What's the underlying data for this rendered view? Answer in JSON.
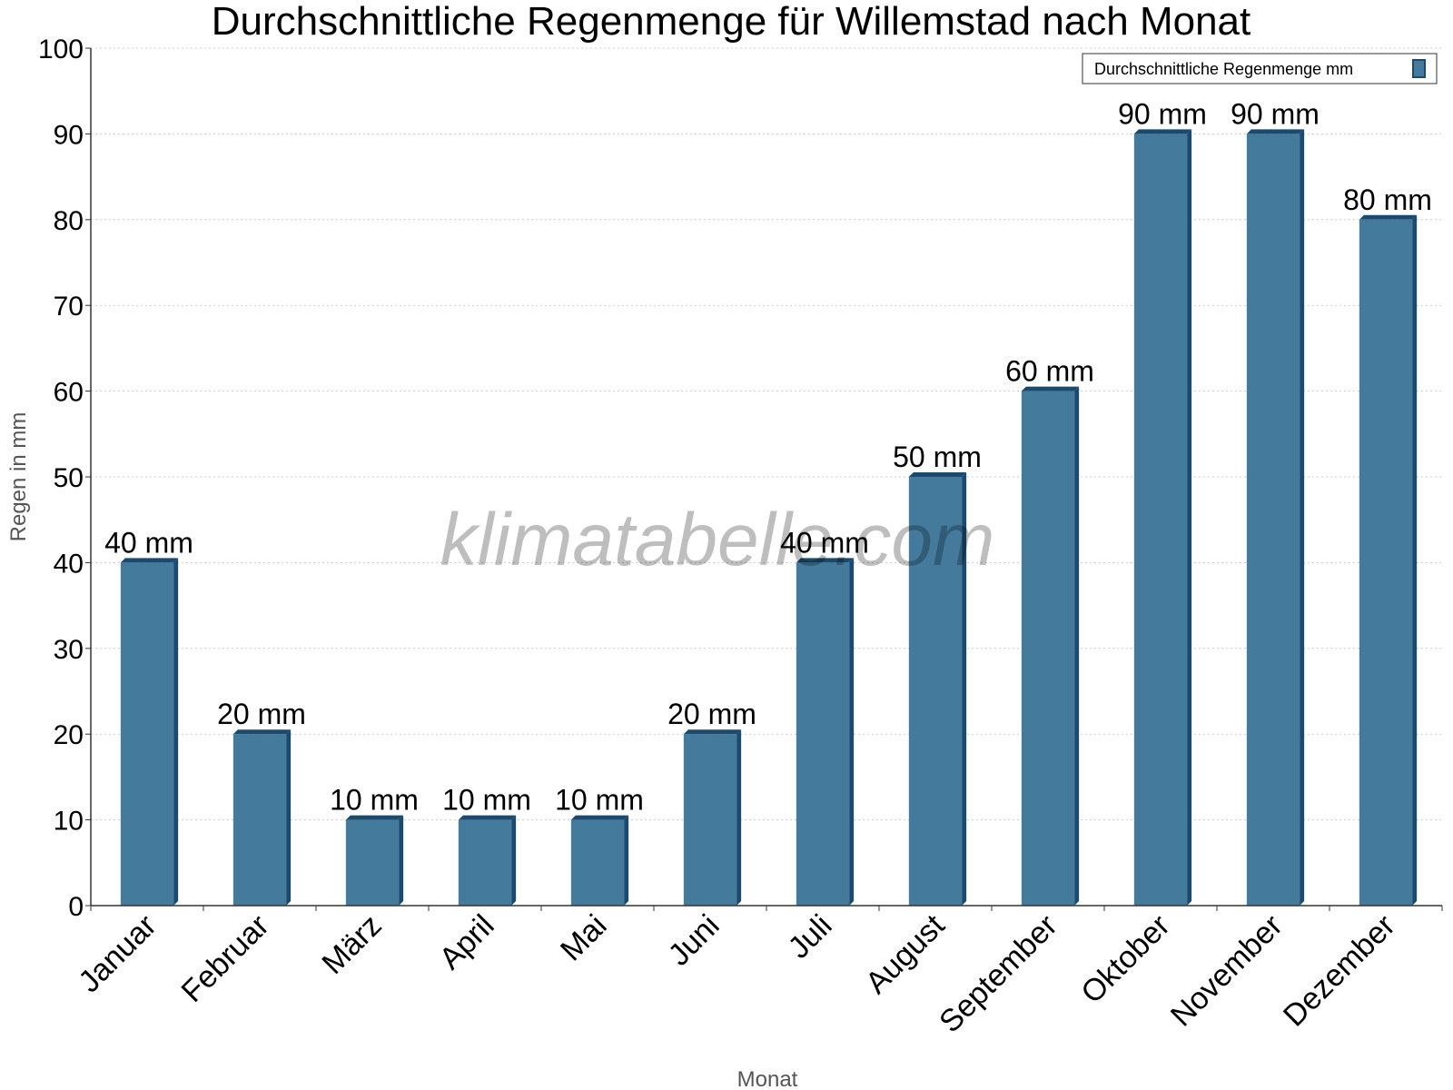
{
  "chart_data": {
    "type": "bar",
    "title": "Durchschnittliche Regenmenge für Willemstad nach Monat",
    "xlabel": "Monat",
    "ylabel": "Regen in mm",
    "ylim": [
      0,
      100
    ],
    "yticks": [
      0,
      10,
      20,
      30,
      40,
      50,
      60,
      70,
      80,
      90,
      100
    ],
    "categories": [
      "Januar",
      "Februar",
      "März",
      "April",
      "Mai",
      "Juni",
      "Juli",
      "August",
      "September",
      "Oktober",
      "November",
      "Dezember"
    ],
    "series": [
      {
        "name": "Durchschnittliche Regenmenge mm",
        "values": [
          40,
          20,
          10,
          10,
          10,
          20,
          40,
          50,
          60,
          90,
          90,
          80
        ],
        "labels": [
          "40 mm",
          "20 mm",
          "10 mm",
          "10 mm",
          "10 mm",
          "20 mm",
          "40 mm",
          "50 mm",
          "60 mm",
          "90 mm",
          "90 mm",
          "80 mm"
        ]
      }
    ],
    "grid": true,
    "legend_position": "top-right",
    "colors": {
      "bar": "#447a9c",
      "bar_dark": "#1a4a6e",
      "grid": "#cccccc",
      "axis": "#333333"
    }
  },
  "watermark": "klimatabelle.com"
}
